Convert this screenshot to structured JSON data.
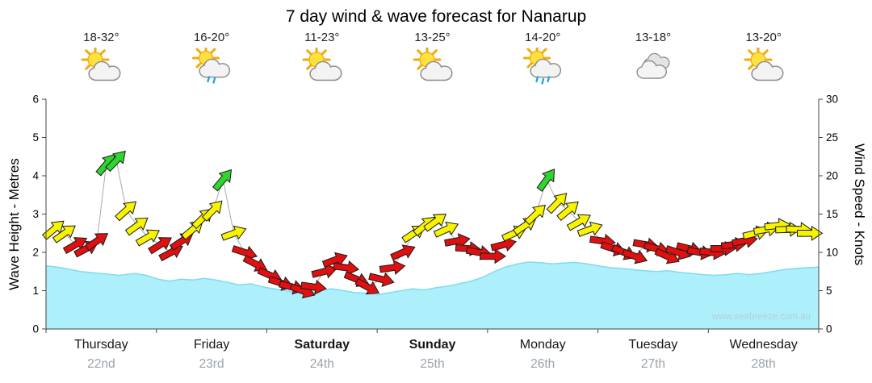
{
  "title": "7 day wind & wave forecast for Nanarup",
  "watermark": "www.seabreeze.com.au",
  "days": [
    {
      "name": "Thursday",
      "date": "22nd",
      "temp": "18-32°",
      "icon": "partly-cloudy",
      "bold": false
    },
    {
      "name": "Friday",
      "date": "23rd",
      "temp": "16-20°",
      "icon": "light-shower",
      "bold": false
    },
    {
      "name": "Saturday",
      "date": "24th",
      "temp": "11-23°",
      "icon": "partly-cloudy",
      "bold": true
    },
    {
      "name": "Sunday",
      "date": "25th",
      "temp": "13-25°",
      "icon": "partly-cloudy",
      "bold": true
    },
    {
      "name": "Monday",
      "date": "26th",
      "temp": "14-20°",
      "icon": "shower",
      "bold": false
    },
    {
      "name": "Tuesday",
      "date": "27th",
      "temp": "13-18°",
      "icon": "cloudy",
      "bold": false
    },
    {
      "name": "Wednesday",
      "date": "28th",
      "temp": "13-20°",
      "icon": "partly-cloudy",
      "bold": false
    }
  ],
  "chart_data": {
    "type": "area+wind-arrows",
    "left_axis": {
      "label": "Wave Height - Metres",
      "min": 0,
      "max": 6,
      "step": 1
    },
    "right_axis": {
      "label": "Wind Speed - Knots",
      "min": 0,
      "max": 30,
      "step": 5
    },
    "grid": false,
    "wave_height_m": [
      [
        0,
        1.65
      ],
      [
        0.02,
        1.6
      ],
      [
        0.045,
        1.5
      ],
      [
        0.07,
        1.45
      ],
      [
        0.095,
        1.4
      ],
      [
        0.115,
        1.45
      ],
      [
        0.13,
        1.4
      ],
      [
        0.145,
        1.3
      ],
      [
        0.16,
        1.25
      ],
      [
        0.175,
        1.3
      ],
      [
        0.19,
        1.28
      ],
      [
        0.205,
        1.32
      ],
      [
        0.22,
        1.28
      ],
      [
        0.235,
        1.22
      ],
      [
        0.25,
        1.15
      ],
      [
        0.265,
        1.18
      ],
      [
        0.28,
        1.1
      ],
      [
        0.295,
        1.05
      ],
      [
        0.31,
        1.0
      ],
      [
        0.325,
        0.95
      ],
      [
        0.34,
        0.98
      ],
      [
        0.355,
        1.02
      ],
      [
        0.37,
        1.05
      ],
      [
        0.385,
        1.0
      ],
      [
        0.4,
        0.95
      ],
      [
        0.415,
        0.93
      ],
      [
        0.43,
        0.9
      ],
      [
        0.445,
        0.95
      ],
      [
        0.46,
        1.0
      ],
      [
        0.475,
        1.05
      ],
      [
        0.49,
        1.02
      ],
      [
        0.505,
        1.08
      ],
      [
        0.52,
        1.12
      ],
      [
        0.535,
        1.18
      ],
      [
        0.55,
        1.25
      ],
      [
        0.565,
        1.35
      ],
      [
        0.58,
        1.5
      ],
      [
        0.595,
        1.62
      ],
      [
        0.61,
        1.7
      ],
      [
        0.625,
        1.75
      ],
      [
        0.64,
        1.73
      ],
      [
        0.655,
        1.7
      ],
      [
        0.67,
        1.72
      ],
      [
        0.685,
        1.74
      ],
      [
        0.7,
        1.7
      ],
      [
        0.715,
        1.65
      ],
      [
        0.73,
        1.6
      ],
      [
        0.745,
        1.58
      ],
      [
        0.76,
        1.55
      ],
      [
        0.775,
        1.52
      ],
      [
        0.79,
        1.5
      ],
      [
        0.805,
        1.52
      ],
      [
        0.82,
        1.48
      ],
      [
        0.835,
        1.45
      ],
      [
        0.85,
        1.42
      ],
      [
        0.865,
        1.4
      ],
      [
        0.88,
        1.42
      ],
      [
        0.895,
        1.45
      ],
      [
        0.91,
        1.42
      ],
      [
        0.925,
        1.45
      ],
      [
        0.94,
        1.5
      ],
      [
        0.955,
        1.55
      ],
      [
        0.97,
        1.58
      ],
      [
        0.985,
        1.6
      ],
      [
        1,
        1.62
      ]
    ],
    "wind_arrows_schema": [
      "x_fraction_of_week",
      "knots",
      "direction_deg_0_is_east"
    ],
    "wind_arrows": [
      [
        0.01,
        13,
        -40
      ],
      [
        0.024,
        12.5,
        -35
      ],
      [
        0.038,
        11,
        -30
      ],
      [
        0.052,
        10.5,
        -28
      ],
      [
        0.066,
        11.5,
        -35
      ],
      [
        0.078,
        21.5,
        -50
      ],
      [
        0.091,
        22,
        -46
      ],
      [
        0.104,
        15.5,
        -42
      ],
      [
        0.118,
        13.5,
        -36
      ],
      [
        0.132,
        12,
        -30
      ],
      [
        0.148,
        11,
        -32
      ],
      [
        0.162,
        10,
        -28
      ],
      [
        0.176,
        11.5,
        -34
      ],
      [
        0.19,
        13,
        -40
      ],
      [
        0.203,
        14.5,
        -44
      ],
      [
        0.216,
        15.5,
        -46
      ],
      [
        0.229,
        19.5,
        -50
      ],
      [
        0.243,
        12.5,
        -20
      ],
      [
        0.257,
        10,
        18
      ],
      [
        0.271,
        8.5,
        28
      ],
      [
        0.29,
        7,
        24
      ],
      [
        0.304,
        6,
        18
      ],
      [
        0.318,
        5.5,
        14
      ],
      [
        0.332,
        5,
        20
      ],
      [
        0.346,
        5.5,
        8
      ],
      [
        0.36,
        7.5,
        -14
      ],
      [
        0.374,
        9,
        -20
      ],
      [
        0.388,
        8,
        8
      ],
      [
        0.402,
        6.5,
        22
      ],
      [
        0.416,
        5.5,
        28
      ],
      [
        0.434,
        6.5,
        14
      ],
      [
        0.448,
        8,
        -8
      ],
      [
        0.462,
        10,
        -24
      ],
      [
        0.476,
        12.5,
        -34
      ],
      [
        0.49,
        13.5,
        -40
      ],
      [
        0.504,
        14,
        -36
      ],
      [
        0.518,
        13,
        -24
      ],
      [
        0.532,
        11.5,
        -10
      ],
      [
        0.546,
        10.5,
        4
      ],
      [
        0.56,
        10,
        10
      ],
      [
        0.578,
        9.5,
        0
      ],
      [
        0.592,
        11,
        -14
      ],
      [
        0.606,
        12.5,
        -24
      ],
      [
        0.62,
        13.5,
        -34
      ],
      [
        0.634,
        15,
        -44
      ],
      [
        0.648,
        19.5,
        -54
      ],
      [
        0.662,
        16.5,
        -46
      ],
      [
        0.676,
        15.5,
        -40
      ],
      [
        0.69,
        14,
        -30
      ],
      [
        0.704,
        13,
        -20
      ],
      [
        0.72,
        11.5,
        8
      ],
      [
        0.734,
        10.5,
        18
      ],
      [
        0.748,
        10,
        24
      ],
      [
        0.762,
        9.5,
        20
      ],
      [
        0.776,
        11,
        10
      ],
      [
        0.79,
        10.5,
        14
      ],
      [
        0.804,
        9.5,
        24
      ],
      [
        0.818,
        10,
        18
      ],
      [
        0.832,
        10.5,
        14
      ],
      [
        0.846,
        10,
        10
      ],
      [
        0.862,
        10,
        6
      ],
      [
        0.876,
        10.5,
        0
      ],
      [
        0.89,
        11,
        -6
      ],
      [
        0.904,
        11.5,
        -10
      ],
      [
        0.918,
        12.5,
        -14
      ],
      [
        0.932,
        13,
        -10
      ],
      [
        0.946,
        13.5,
        -6
      ],
      [
        0.96,
        13,
        -2
      ],
      [
        0.974,
        13,
        2
      ],
      [
        0.988,
        12.5,
        0
      ]
    ],
    "thresholds": {
      "yellow_min_kn": 12,
      "green_min_kn": 19
    },
    "colors": {
      "wave_fill": "#adeffa",
      "wave_edge": "#7fdcee",
      "arrow_red": "#e01010",
      "arrow_yellow": "#f8f400",
      "arrow_green": "#2ed52e",
      "connector": "#aaaaaa",
      "axis": "#444444",
      "watermark_text": "#b4ced9"
    }
  }
}
